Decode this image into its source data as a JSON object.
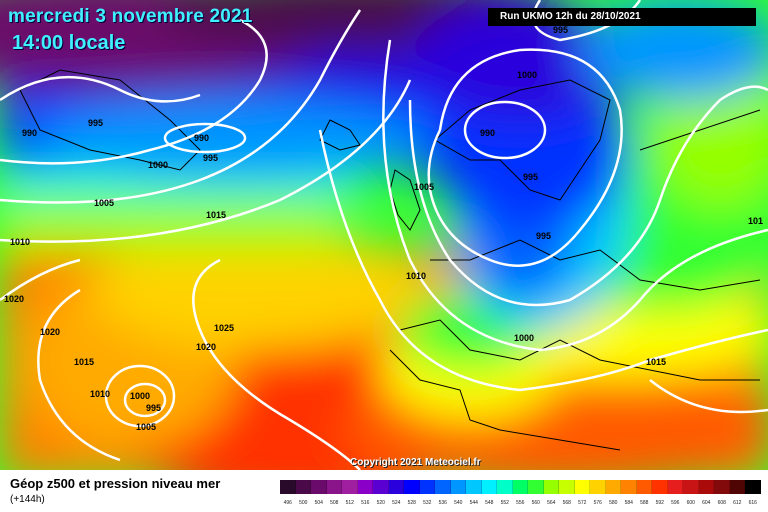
{
  "header": {
    "date_title": "mercredi 3 novembre 2021",
    "time_title": "14:00 locale",
    "run_label": "Run UKMO 12h du 28/10/2021"
  },
  "map": {
    "copyright": "Copyright 2021 Meteociel.fr",
    "pressure_labels": [
      {
        "text": "995",
        "lon_lat_hint": "top-center-right"
      },
      {
        "text": "1000",
        "lon_lat_hint": "north-sea-top"
      },
      {
        "text": "990",
        "lon_lat_hint": "greenland-west"
      },
      {
        "text": "995",
        "lon_lat_hint": "greenland-west-2"
      },
      {
        "text": "990",
        "lon_lat_hint": "iceland-low"
      },
      {
        "text": "995",
        "lon_lat_hint": "iceland-low-2"
      },
      {
        "text": "1000",
        "lon_lat_hint": "iceland-south"
      },
      {
        "text": "990",
        "lon_lat_hint": "scandinavia-low"
      },
      {
        "text": "995",
        "lon_lat_hint": "scandinavia-2"
      },
      {
        "text": "1005",
        "lon_lat_hint": "atlantic-north"
      },
      {
        "text": "1005",
        "lon_lat_hint": "atlantic-mid"
      },
      {
        "text": "995",
        "lon_lat_hint": "north-sea"
      },
      {
        "text": "1015",
        "lon_lat_hint": "atlantic-center"
      },
      {
        "text": "1010",
        "lon_lat_hint": "west-edge"
      },
      {
        "text": "1010",
        "lon_lat_hint": "biscay"
      },
      {
        "text": "1020",
        "lon_lat_hint": "west-edge-2"
      },
      {
        "text": "1020",
        "lon_lat_hint": "west-edge-3"
      },
      {
        "text": "1025",
        "lon_lat_hint": "azores-high"
      },
      {
        "text": "1020",
        "lon_lat_hint": "azores-high-2"
      },
      {
        "text": "1000",
        "lon_lat_hint": "central-europe"
      },
      {
        "text": "1015",
        "lon_lat_hint": "balkans"
      },
      {
        "text": "1015",
        "lon_lat_hint": "atlantic-south"
      },
      {
        "text": "1010",
        "lon_lat_hint": "cutoff-low"
      },
      {
        "text": "1000",
        "lon_lat_hint": "cutoff-low-center"
      },
      {
        "text": "995",
        "lon_lat_hint": "cutoff-low-center-2"
      },
      {
        "text": "1005",
        "lon_lat_hint": "cutoff-low-south"
      },
      {
        "text": "101",
        "lon_lat_hint": "east-edge"
      }
    ]
  },
  "legend": {
    "title": "Géop z500 et pression niveau mer",
    "subtitle": "(+144h)",
    "scale": [
      {
        "label": "496",
        "color": "#2a0a2a"
      },
      {
        "label": "500",
        "color": "#4a0a4a"
      },
      {
        "label": "504",
        "color": "#6a0a6a"
      },
      {
        "label": "508",
        "color": "#8a148a"
      },
      {
        "label": "512",
        "color": "#a01ea0"
      },
      {
        "label": "516",
        "color": "#8a00c8"
      },
      {
        "label": "520",
        "color": "#5a00d2"
      },
      {
        "label": "524",
        "color": "#2a00dc"
      },
      {
        "label": "528",
        "color": "#0000ff"
      },
      {
        "label": "532",
        "color": "#0032ff"
      },
      {
        "label": "536",
        "color": "#0064ff"
      },
      {
        "label": "540",
        "color": "#0096ff"
      },
      {
        "label": "544",
        "color": "#00c8ff"
      },
      {
        "label": "548",
        "color": "#00f0ff"
      },
      {
        "label": "552",
        "color": "#00ffc8"
      },
      {
        "label": "556",
        "color": "#00ff64"
      },
      {
        "label": "560",
        "color": "#32ff32"
      },
      {
        "label": "564",
        "color": "#96ff00"
      },
      {
        "label": "568",
        "color": "#c8ff00"
      },
      {
        "label": "572",
        "color": "#ffff00"
      },
      {
        "label": "576",
        "color": "#ffd200"
      },
      {
        "label": "580",
        "color": "#ffaa00"
      },
      {
        "label": "584",
        "color": "#ff8200"
      },
      {
        "label": "588",
        "color": "#ff5a00"
      },
      {
        "label": "592",
        "color": "#ff3200"
      },
      {
        "label": "596",
        "color": "#e61e1e"
      },
      {
        "label": "600",
        "color": "#c81414"
      },
      {
        "label": "604",
        "color": "#aa0a0a"
      },
      {
        "label": "608",
        "color": "#820a0a"
      },
      {
        "label": "612",
        "color": "#500505"
      },
      {
        "label": "616",
        "color": "#000000"
      }
    ]
  }
}
